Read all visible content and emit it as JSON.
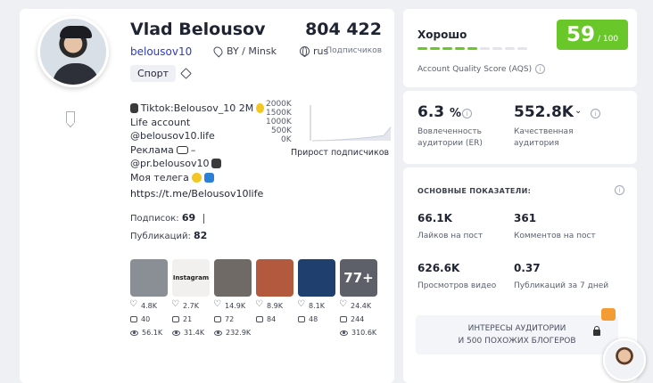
{
  "profile": {
    "name": "Vlad Belousov",
    "handle": "belousov10",
    "location": "BY / Minsk",
    "language": "rus",
    "subscribers": "804 422",
    "subscribers_label": "Подписчиков",
    "tag": "Спорт",
    "bio": [
      "Tiktok:Belousov_10 2M",
      "Life account",
      "@belousov10.life",
      "Реклама",
      "@pr.belousov10",
      "Моя телега"
    ],
    "bio_suffix_dash": "–",
    "link": "https://t.me/Belousov10life",
    "following_label": "Подписок:",
    "following": "69",
    "posts_label": "Публикаций:",
    "posts_count": "82"
  },
  "growth_chart": {
    "caption": "Прирост подписчиков"
  },
  "chart_data": {
    "type": "area",
    "title": "",
    "ylabel": "",
    "xlabel": "Прирост подписчиков",
    "y_ticks": [
      "2000K",
      "1500K",
      "1000K",
      "500K",
      "0K"
    ],
    "ylim": [
      0,
      2000000
    ],
    "x": [
      1,
      2,
      3,
      4,
      5,
      6,
      7,
      8,
      9,
      10,
      11,
      12
    ],
    "values": [
      0,
      10000,
      20000,
      40000,
      60000,
      90000,
      120000,
      160000,
      200000,
      250000,
      300000,
      804422
    ]
  },
  "posts": [
    {
      "likes": "4.8K",
      "comments": "40",
      "views": "56.1K",
      "color": "#8a8f96",
      "overlay": ""
    },
    {
      "likes": "2.7K",
      "comments": "21",
      "views": "31.4K",
      "color": "#f2efef",
      "overlay": "Instagram"
    },
    {
      "likes": "14.9K",
      "comments": "72",
      "views": "232.9K",
      "color": "#6f6a66",
      "overlay": ""
    },
    {
      "likes": "8.9K",
      "comments": "84",
      "views": "",
      "color": "#b35a3e",
      "overlay": ""
    },
    {
      "likes": "8.1K",
      "comments": "48",
      "views": "",
      "color": "#1f3f6e",
      "overlay": ""
    },
    {
      "likes": "24.4K",
      "comments": "244",
      "views": "310.6K",
      "color": "#5d6068",
      "overlay": "77+"
    }
  ],
  "quality": {
    "rating": "Хорошо",
    "score": "59",
    "out_of": "/ 100",
    "caption": "Account Quality Score (AQS)",
    "bar_filled": 5,
    "bar_total": 9,
    "bar_color": "#6ac72a"
  },
  "metrics": {
    "er_value": "6.3",
    "er_unit": "%",
    "er_label_1": "Вовлеченность",
    "er_label_2": "аудитории (ER)",
    "qa_value": "552.8K",
    "qa_label_1": "Качественная",
    "qa_label_2": "аудитория"
  },
  "key_stats": {
    "title": "ОСНОВНЫЕ ПОКАЗАТЕЛИ:",
    "items": [
      {
        "value": "66.1K",
        "label": "Лайков на пост"
      },
      {
        "value": "361",
        "label": "Комментов на пост"
      },
      {
        "value": "626.6K",
        "label": "Просмотров видео"
      },
      {
        "value": "0.37",
        "label": "Публикаций за 7 дней"
      }
    ]
  },
  "cta": {
    "line1": "ИНТЕРЕСЫ АУДИТОРИИ",
    "line2": "И 500 ПОХОЖИХ БЛОГЕРОВ"
  }
}
